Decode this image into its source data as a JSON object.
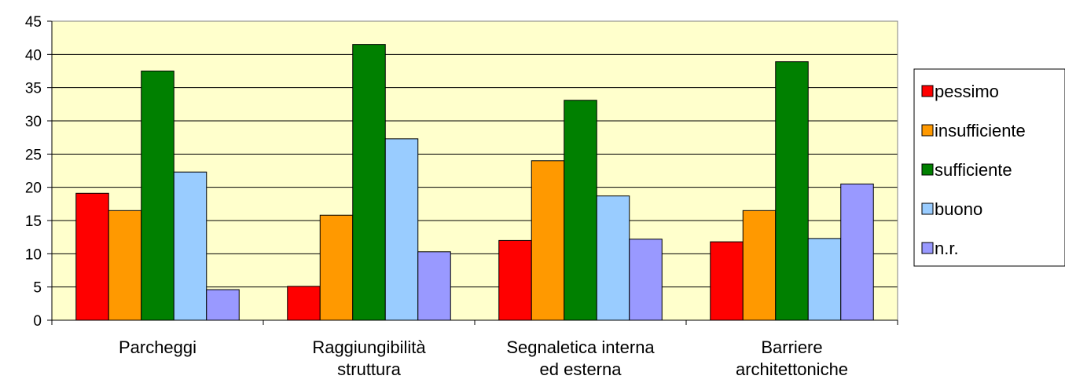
{
  "chart_data": {
    "type": "bar",
    "title": "",
    "xlabel": "",
    "ylabel": "",
    "ylim": [
      0,
      45
    ],
    "yticks": [
      0,
      5,
      10,
      15,
      20,
      25,
      30,
      35,
      40,
      45
    ],
    "grid": true,
    "legend_position": "right",
    "plot_background": "#FFFFCC",
    "categories": [
      [
        "Parcheggi"
      ],
      [
        "Raggiungibilità",
        "struttura"
      ],
      [
        "Segnaletica interna",
        "ed esterna"
      ],
      [
        "Barriere",
        "architettoniche"
      ]
    ],
    "series": [
      {
        "name": "pessimo",
        "color": "#FF0000",
        "values": [
          19.1,
          5.1,
          12.0,
          11.8
        ]
      },
      {
        "name": "insufficiente",
        "color": "#FF9900",
        "values": [
          16.5,
          15.8,
          24.0,
          16.5
        ]
      },
      {
        "name": "sufficiente",
        "color": "#008000",
        "values": [
          37.5,
          41.5,
          33.1,
          38.9
        ]
      },
      {
        "name": "buono",
        "color": "#99CCFF",
        "values": [
          22.3,
          27.3,
          18.7,
          12.3
        ]
      },
      {
        "name": "n.r.",
        "color": "#9999FF",
        "values": [
          4.6,
          10.3,
          12.2,
          20.5
        ]
      }
    ]
  }
}
